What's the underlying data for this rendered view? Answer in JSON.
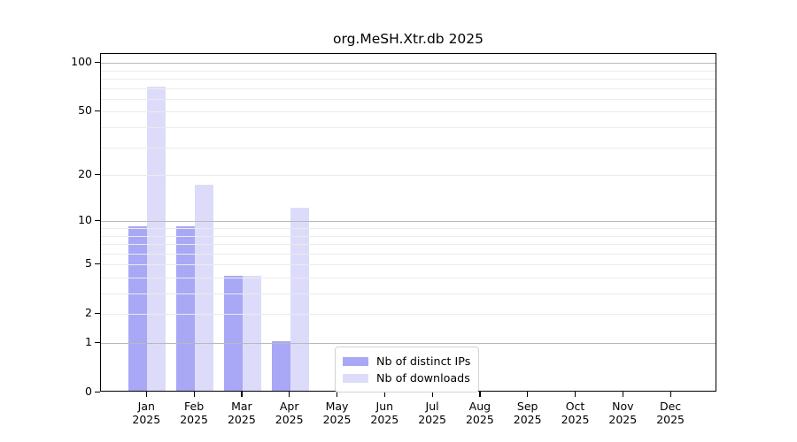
{
  "title": "org.MeSH.Xtr.db 2025",
  "chart_data": {
    "type": "bar",
    "title": "org.MeSH.Xtr.db 2025",
    "y_scale": "log10(1+x)",
    "ylim": [
      0,
      113
    ],
    "grid": true,
    "legend_position": "inside-bottom-center",
    "x_tick_year": "2025",
    "categories": [
      "Jan",
      "Feb",
      "Mar",
      "Apr",
      "May",
      "Jun",
      "Jul",
      "Aug",
      "Sep",
      "Oct",
      "Nov",
      "Dec"
    ],
    "y_ticks": [
      0,
      1,
      2,
      5,
      10,
      20,
      50,
      100
    ],
    "y_major_gridlines": [
      1,
      10,
      100
    ],
    "y_minor_gridlines": [
      2,
      3,
      4,
      5,
      6,
      7,
      8,
      9,
      20,
      30,
      40,
      50,
      60,
      70,
      80,
      90
    ],
    "series": [
      {
        "name": "Nb of distinct IPs",
        "color": "#a8a8f6",
        "values": [
          9,
          9,
          4,
          1,
          0,
          0,
          0,
          0,
          0,
          0,
          0,
          0
        ]
      },
      {
        "name": "Nb of downloads",
        "color": "#dcdcfa",
        "values": [
          70,
          17,
          4,
          12,
          0,
          0,
          0,
          0,
          0,
          0,
          0,
          0
        ]
      }
    ],
    "colors": {
      "major_grid": "#b9b9b9",
      "minor_grid": "#ebebeb",
      "spine": "#000000",
      "background": "#ffffff"
    }
  }
}
